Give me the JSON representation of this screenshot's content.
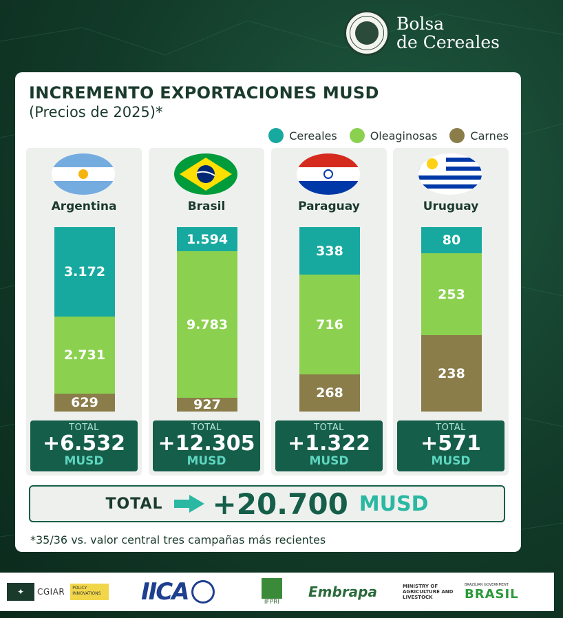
{
  "header": {
    "org_name_line1": "Bolsa",
    "org_name_line2": "de Cereales"
  },
  "chart_data": {
    "type": "bar",
    "title": "INCREMENTO EXPORTACIONES MUSD",
    "subtitle": "(Precios de 2025)*",
    "categories": [
      "Argentina",
      "Brasil",
      "Paraguay",
      "Uruguay"
    ],
    "series": [
      {
        "name": "Cereales",
        "color": "#17a99f",
        "values": [
          3172,
          1594,
          338,
          80
        ],
        "labels": [
          "3.172",
          "1.594",
          "338",
          "80"
        ]
      },
      {
        "name": "Oleaginosas",
        "color": "#8bd14f",
        "values": [
          2731,
          9783,
          716,
          253
        ],
        "labels": [
          "2.731",
          "9.783",
          "716",
          "253"
        ]
      },
      {
        "name": "Carnes",
        "color": "#8a7d4a",
        "values": [
          629,
          927,
          268,
          238
        ],
        "labels": [
          "629",
          "927",
          "268",
          "238"
        ]
      }
    ],
    "stacked": true,
    "normalized": true,
    "legend_position": "top-right"
  },
  "panels": [
    {
      "country": "Argentina",
      "flag_icon": "argentina-flag-icon",
      "total_label": "TOTAL",
      "total_value": "+6.532",
      "total_unit": "MUSD"
    },
    {
      "country": "Brasil",
      "flag_icon": "brazil-flag-icon",
      "total_label": "TOTAL",
      "total_value": "+12.305",
      "total_unit": "MUSD"
    },
    {
      "country": "Paraguay",
      "flag_icon": "paraguay-flag-icon",
      "total_label": "TOTAL",
      "total_value": "+1.322",
      "total_unit": "MUSD"
    },
    {
      "country": "Uruguay",
      "flag_icon": "uruguay-flag-icon",
      "total_label": "TOTAL",
      "total_value": "+571",
      "total_unit": "MUSD"
    }
  ],
  "grand_total": {
    "label": "TOTAL",
    "value": "+20.700",
    "unit": "MUSD"
  },
  "footnote": "*35/36 vs. valor central tres campañas más recientes",
  "sponsors": {
    "cgiar": "CGIAR",
    "cgiar_tag": "POLICY INNOVATIONS",
    "iica": "IICA",
    "ifpri": "IFPRI",
    "embrapa": "Embrapa",
    "ministry": "MINISTRY OF AGRICULTURE AND LIVESTOCK",
    "brasil": "BRASIL",
    "brasil_top": "BRAZILIAN GOVERNMENT"
  },
  "colors": {
    "cereales": "#17a99f",
    "oleaginosas": "#8bd14f",
    "carnes": "#8a7d4a",
    "total_box": "#155e4a"
  }
}
